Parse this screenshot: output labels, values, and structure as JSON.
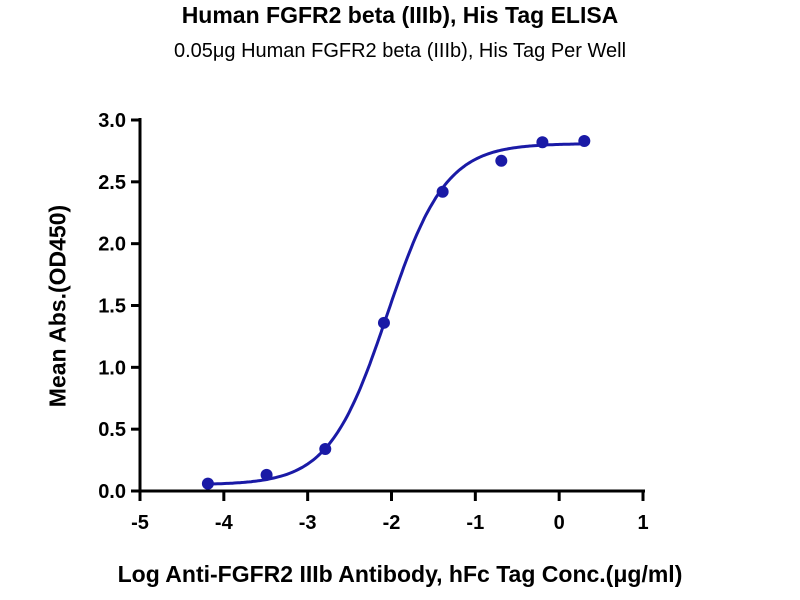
{
  "chart_data": {
    "type": "scatter",
    "title": "Human FGFR2 beta (IIIb), His Tag ELISA",
    "subtitle": "0.05μg Human FGFR2 beta (IIIb), His Tag Per Well",
    "xlabel": "Log  Anti-FGFR2 IIIb Antibody, hFc Tag Conc.(μg/ml)",
    "ylabel": "Mean Abs.(OD450)",
    "xlim": [
      -5,
      1
    ],
    "ylim": [
      0,
      3.0
    ],
    "xticks": [
      "-5",
      "-4",
      "-3",
      "-2",
      "-1",
      "0",
      "1"
    ],
    "yticks": [
      "0.0",
      "0.5",
      "1.0",
      "1.5",
      "2.0",
      "2.5",
      "3.0"
    ],
    "grid": false,
    "color": "#1a1aa6",
    "series": [
      {
        "name": "Mean Abs.",
        "x": [
          -4.19,
          -3.49,
          -2.79,
          -2.09,
          -1.39,
          -0.69,
          -0.2,
          0.3
        ],
        "y": [
          0.06,
          0.13,
          0.34,
          1.36,
          2.42,
          2.67,
          2.82,
          2.83
        ]
      }
    ],
    "fit": {
      "type": "4PL",
      "bottom": 0.05,
      "top": 2.81,
      "logEC50": -2.05,
      "hill": 1.25
    }
  }
}
